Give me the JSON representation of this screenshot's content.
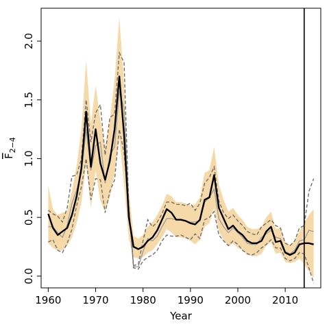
{
  "chart_data": {
    "type": "line",
    "xlabel": "Year",
    "ylabel": "F2-4",
    "ylabel_main": "F",
    "ylabel_sub": "2−4",
    "xlim": [
      1958.5,
      2017.5
    ],
    "ylim": [
      -0.1,
      2.28
    ],
    "x_ticks": [
      1960,
      1970,
      1980,
      1990,
      2000,
      2010
    ],
    "x_tick_labels": [
      "1960",
      "1970",
      "1980",
      "1990",
      "2000",
      "2010"
    ],
    "y_ticks": [
      0.0,
      0.5,
      1.0,
      1.5,
      2.0
    ],
    "y_tick_labels": [
      "0.0",
      "0.5",
      "1.0",
      "1.5",
      "2.0"
    ],
    "vertical_line_x": 2014,
    "colors": {
      "band": "#f5d9a8",
      "estimate": "#000000",
      "dashed": "#6e6e6e",
      "thin": "#9a9a9a",
      "frame": "#000000"
    },
    "x": [
      1960,
      1961,
      1962,
      1963,
      1964,
      1965,
      1966,
      1967,
      1968,
      1969,
      1970,
      1971,
      1972,
      1973,
      1974,
      1975,
      1976,
      1977,
      1978,
      1979,
      1980,
      1981,
      1982,
      1983,
      1984,
      1985,
      1986,
      1987,
      1988,
      1989,
      1990,
      1991,
      1992,
      1993,
      1994,
      1995,
      1996,
      1997,
      1998,
      1999,
      2000,
      2001,
      2002,
      2003,
      2004,
      2005,
      2006,
      2007,
      2008,
      2009,
      2010,
      2011,
      2012,
      2013,
      2014,
      2015,
      2016
    ],
    "series": [
      {
        "role": "estimate",
        "values": [
          0.53,
          0.41,
          0.35,
          0.38,
          0.41,
          0.52,
          0.68,
          0.92,
          1.4,
          0.93,
          1.25,
          0.96,
          0.82,
          0.98,
          1.25,
          1.7,
          1.2,
          0.5,
          0.25,
          0.23,
          0.25,
          0.3,
          0.33,
          0.39,
          0.48,
          0.57,
          0.54,
          0.48,
          0.48,
          0.47,
          0.45,
          0.44,
          0.48,
          0.65,
          0.67,
          0.86,
          0.58,
          0.49,
          0.4,
          0.43,
          0.38,
          0.35,
          0.3,
          0.28,
          0.28,
          0.3,
          0.38,
          0.42,
          0.29,
          0.3,
          0.2,
          0.18,
          0.2,
          0.27,
          0.28,
          0.28,
          0.27
        ]
      },
      {
        "role": "band",
        "lower": [
          0.28,
          0.24,
          0.22,
          0.22,
          0.26,
          0.33,
          0.45,
          0.63,
          0.95,
          0.58,
          0.9,
          0.64,
          0.55,
          0.67,
          0.88,
          1.18,
          0.78,
          0.32,
          0.16,
          0.15,
          0.16,
          0.2,
          0.22,
          0.27,
          0.33,
          0.4,
          0.37,
          0.33,
          0.33,
          0.32,
          0.3,
          0.27,
          0.31,
          0.42,
          0.45,
          0.58,
          0.38,
          0.31,
          0.25,
          0.28,
          0.24,
          0.22,
          0.18,
          0.17,
          0.17,
          0.19,
          0.26,
          0.29,
          0.19,
          0.2,
          0.12,
          0.11,
          0.12,
          0.15,
          0.1,
          0.04,
          -0.02
        ],
        "upper": [
          0.77,
          0.57,
          0.52,
          0.54,
          0.55,
          0.72,
          0.94,
          1.25,
          1.83,
          1.3,
          1.62,
          1.33,
          1.1,
          1.33,
          1.67,
          2.2,
          1.63,
          0.74,
          0.34,
          0.32,
          0.35,
          0.42,
          0.46,
          0.52,
          0.6,
          0.7,
          0.68,
          0.63,
          0.63,
          0.62,
          0.6,
          0.61,
          0.67,
          0.88,
          0.9,
          1.1,
          0.78,
          0.65,
          0.55,
          0.58,
          0.52,
          0.48,
          0.42,
          0.4,
          0.4,
          0.42,
          0.5,
          0.55,
          0.4,
          0.41,
          0.29,
          0.26,
          0.3,
          0.38,
          0.45,
          0.52,
          0.57
        ]
      },
      {
        "role": "dashed-lower",
        "values": [
          0.29,
          0.31,
          0.22,
          0.2,
          0.28,
          0.4,
          0.6,
          0.76,
          1.0,
          0.65,
          0.83,
          0.82,
          0.54,
          0.72,
          0.82,
          1.25,
          1.05,
          0.6,
          0.07,
          0.06,
          0.13,
          0.16,
          0.18,
          0.22,
          0.3,
          0.35,
          0.34,
          0.34,
          0.35,
          0.33,
          0.31,
          0.36,
          0.32,
          0.48,
          0.5,
          0.55,
          0.35,
          0.3,
          0.26,
          0.3,
          0.27,
          0.22,
          0.19,
          0.18,
          0.2,
          0.24,
          0.27,
          0.31,
          0.24,
          0.24,
          0.15,
          0.13,
          0.15,
          0.2,
          0.19,
          0.07,
          -0.06
        ]
      },
      {
        "role": "dashed-upper",
        "values": [
          0.56,
          0.53,
          0.51,
          0.46,
          0.58,
          0.85,
          0.86,
          1.0,
          1.5,
          1.14,
          1.39,
          1.46,
          1.03,
          1.35,
          1.38,
          1.9,
          1.82,
          0.58,
          0.09,
          0.1,
          0.3,
          0.48,
          0.42,
          0.46,
          0.53,
          0.63,
          0.63,
          0.61,
          0.61,
          0.6,
          0.62,
          0.56,
          0.62,
          0.79,
          0.84,
          0.93,
          0.64,
          0.54,
          0.49,
          0.52,
          0.47,
          0.43,
          0.38,
          0.36,
          0.35,
          0.42,
          0.45,
          0.48,
          0.43,
          0.41,
          0.28,
          0.26,
          0.3,
          0.41,
          0.43,
          0.72,
          0.83
        ]
      },
      {
        "role": "thin",
        "values": [
          0.42,
          0.42,
          0.37,
          0.33,
          0.43,
          0.62,
          0.73,
          0.88,
          1.25,
          0.9,
          1.11,
          1.14,
          0.79,
          1.03,
          1.1,
          1.57,
          1.43,
          0.59,
          0.08,
          0.08,
          0.21,
          0.32,
          0.3,
          0.34,
          0.42,
          0.49,
          0.49,
          0.48,
          0.48,
          0.47,
          0.46,
          0.46,
          0.47,
          0.63,
          0.67,
          0.74,
          0.49,
          0.42,
          0.37,
          0.41,
          0.37,
          0.33,
          0.28,
          0.27,
          0.27,
          0.33,
          0.36,
          0.39,
          0.33,
          0.32,
          0.21,
          0.19,
          0.22,
          0.3,
          0.31,
          0.39,
          0.38
        ]
      }
    ]
  }
}
